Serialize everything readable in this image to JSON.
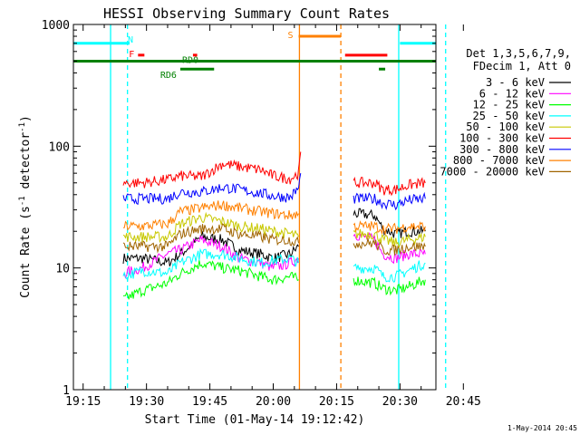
{
  "chart_data": {
    "type": "line",
    "title": "HESSI Observing Summary Count Rates",
    "xlabel": "Start Time (01-May-14 19:12:42)",
    "ylabel": "Count Rate (s",
    "ylabel_sup": "-1",
    "ylabel_mid": " detector",
    "ylabel_tail": ")",
    "xlim_min": [
      12.7,
      98.5
    ],
    "x_ticks": [
      "19:15",
      "19:30",
      "19:45",
      "20:00",
      "20:15",
      "20:30",
      "20:45"
    ],
    "x_tick_minutes": [
      15,
      30,
      45,
      60,
      75,
      90,
      105
    ],
    "ylim": [
      1,
      1000
    ],
    "yscale": "log",
    "y_ticks": [
      "1",
      "10",
      "100",
      "1000"
    ],
    "y_tick_values": [
      1,
      10,
      100,
      1000
    ],
    "legend_header": [
      "Det 1,3,5,6,7,9,",
      "FDecim 1, Att 0"
    ],
    "legend_position": "right",
    "timestamp": "1-May-2014 20:45",
    "series": [
      {
        "name": "3 - 6 keV",
        "color": "#000000",
        "segments": [
          [
            [
              24.5,
              12
            ],
            [
              29,
              12
            ],
            [
              35,
              11
            ],
            [
              38,
              13
            ],
            [
              43,
              18
            ],
            [
              48,
              17
            ],
            [
              52,
              14
            ],
            [
              57,
              13
            ],
            [
              60,
              12
            ],
            [
              64,
              13
            ],
            [
              66,
              15
            ]
          ],
          [
            [
              79,
              28
            ],
            [
              84,
              27
            ],
            [
              86,
              21
            ],
            [
              89,
              19
            ],
            [
              92,
              20
            ],
            [
              96,
              20
            ]
          ]
        ]
      },
      {
        "name": "6 - 12 keV",
        "color": "#ff00ff",
        "segments": [
          [
            [
              24.5,
              9
            ],
            [
              29,
              10
            ],
            [
              35,
              13
            ],
            [
              38,
              14
            ],
            [
              43,
              17
            ],
            [
              48,
              15
            ],
            [
              52,
              12
            ],
            [
              57,
              11
            ],
            [
              60,
              10
            ],
            [
              64,
              11
            ],
            [
              66,
              12
            ]
          ],
          [
            [
              79,
              19
            ],
            [
              84,
              17
            ],
            [
              86,
              13
            ],
            [
              89,
              12
            ],
            [
              92,
              13
            ],
            [
              96,
              13
            ]
          ]
        ]
      },
      {
        "name": "12 - 25 keV",
        "color": "#00ff00",
        "segments": [
          [
            [
              24.5,
              5.5
            ],
            [
              29,
              6.5
            ],
            [
              35,
              7.5
            ],
            [
              38,
              9
            ],
            [
              43,
              11
            ],
            [
              48,
              10
            ],
            [
              52,
              9.5
            ],
            [
              57,
              8.5
            ],
            [
              60,
              8
            ],
            [
              64,
              8.5
            ],
            [
              66,
              8
            ]
          ],
          [
            [
              79,
              8
            ],
            [
              84,
              7.5
            ],
            [
              86,
              6.8
            ],
            [
              89,
              6.5
            ],
            [
              92,
              7
            ],
            [
              96,
              8
            ]
          ]
        ]
      },
      {
        "name": "25 - 50 keV",
        "color": "#00ffff",
        "segments": [
          [
            [
              24.5,
              8.5
            ],
            [
              29,
              9.5
            ],
            [
              35,
              9
            ],
            [
              38,
              11
            ],
            [
              43,
              13
            ],
            [
              48,
              13
            ],
            [
              52,
              12
            ],
            [
              57,
              11
            ],
            [
              60,
              11.5
            ],
            [
              64,
              12
            ],
            [
              66,
              11
            ]
          ],
          [
            [
              79,
              10
            ],
            [
              84,
              10
            ],
            [
              86,
              8.5
            ],
            [
              89,
              8.5
            ],
            [
              92,
              9.5
            ],
            [
              96,
              11
            ]
          ]
        ]
      },
      {
        "name": "50 - 100 keV",
        "color": "#c8c800",
        "segments": [
          [
            [
              24.5,
              18
            ],
            [
              29,
              18
            ],
            [
              35,
              18
            ],
            [
              38,
              23
            ],
            [
              43,
              26
            ],
            [
              48,
              24
            ],
            [
              52,
              22
            ],
            [
              57,
              21
            ],
            [
              60,
              20
            ],
            [
              64,
              19
            ],
            [
              66,
              18
            ]
          ],
          [
            [
              79,
              19
            ],
            [
              84,
              19
            ],
            [
              86,
              17
            ],
            [
              89,
              16
            ],
            [
              92,
              17
            ],
            [
              96,
              18
            ]
          ]
        ]
      },
      {
        "name": "100 - 300 keV",
        "color": "#ff0000",
        "segments": [
          [
            [
              24.5,
              50
            ],
            [
              29,
              50
            ],
            [
              35,
              53
            ],
            [
              38,
              57
            ],
            [
              43,
              56
            ],
            [
              48,
              72
            ],
            [
              52,
              68
            ],
            [
              57,
              64
            ],
            [
              60,
              57
            ],
            [
              64,
              54
            ],
            [
              66,
              60
            ],
            [
              66.5,
              90
            ]
          ],
          [
            [
              79,
              50
            ],
            [
              84,
              50
            ],
            [
              86,
              44
            ],
            [
              89,
              44
            ],
            [
              92,
              48
            ],
            [
              96,
              50
            ]
          ]
        ]
      },
      {
        "name": "300 - 800 keV",
        "color": "#0000ff",
        "segments": [
          [
            [
              24.5,
              37
            ],
            [
              29,
              37
            ],
            [
              35,
              37
            ],
            [
              38,
              42
            ],
            [
              43,
              42
            ],
            [
              48,
              46
            ],
            [
              52,
              44
            ],
            [
              57,
              41
            ],
            [
              60,
              39
            ],
            [
              64,
              38
            ],
            [
              66,
              45
            ],
            [
              66.5,
              60
            ]
          ],
          [
            [
              79,
              37
            ],
            [
              84,
              37
            ],
            [
              86,
              34
            ],
            [
              89,
              33
            ],
            [
              92,
              36
            ],
            [
              96,
              37
            ]
          ]
        ]
      },
      {
        "name": "800 - 7000 keV",
        "color": "#ff8000",
        "segments": [
          [
            [
              24.5,
              22
            ],
            [
              29,
              22
            ],
            [
              35,
              23
            ],
            [
              38,
              29
            ],
            [
              43,
              31
            ],
            [
              48,
              33
            ],
            [
              52,
              31
            ],
            [
              57,
              29
            ],
            [
              60,
              28
            ],
            [
              64,
              27
            ],
            [
              66,
              28
            ]
          ],
          [
            [
              79,
              22
            ],
            [
              84,
              22
            ],
            [
              86,
              21
            ],
            [
              89,
              21
            ],
            [
              92,
              22
            ],
            [
              96,
              22
            ]
          ]
        ]
      },
      {
        "name": "7000 - 20000 keV",
        "color": "#a06400",
        "segments": [
          [
            [
              24.5,
              15
            ],
            [
              29,
              15
            ],
            [
              35,
              15
            ],
            [
              38,
              19
            ],
            [
              43,
              21
            ],
            [
              48,
              21
            ],
            [
              52,
              19
            ],
            [
              57,
              18
            ],
            [
              60,
              17
            ],
            [
              64,
              17
            ],
            [
              66,
              16
            ]
          ],
          [
            [
              79,
              16
            ],
            [
              84,
              16
            ],
            [
              86,
              14
            ],
            [
              89,
              14
            ],
            [
              92,
              15
            ],
            [
              96,
              15
            ]
          ]
        ]
      }
    ],
    "flag_bars": [
      {
        "label": "N",
        "color": "#00ffff",
        "y": 700,
        "spans": [
          [
            12.7,
            26
          ],
          [
            90,
            98.5
          ]
        ]
      },
      {
        "label": "F",
        "color": "#ff0000",
        "y": 560,
        "spans": [
          [
            28,
            29.5
          ],
          [
            41,
            42
          ],
          [
            77,
            87
          ]
        ]
      },
      {
        "label": "RD0",
        "color": "#008000",
        "y": 500,
        "spans": [
          [
            12.7,
            98.5
          ]
        ]
      },
      {
        "label": "RD6",
        "color": "#008000",
        "y": 430,
        "spans": [
          [
            38,
            46
          ],
          [
            85,
            86.5
          ]
        ]
      },
      {
        "label": "S",
        "color": "#ff8000",
        "y": 800,
        "spans": [
          [
            66,
            76
          ]
        ]
      }
    ],
    "vlines": [
      {
        "x": 21.5,
        "color": "#00ffff",
        "style": "solid"
      },
      {
        "x": 25.5,
        "color": "#00ffff",
        "style": "dashed"
      },
      {
        "x": 66.2,
        "color": "#ff8000",
        "style": "solid"
      },
      {
        "x": 76.0,
        "color": "#ff8000",
        "style": "dashed"
      },
      {
        "x": 89.7,
        "color": "#00ffff",
        "style": "solid"
      },
      {
        "x": 100.8,
        "color": "#00ffff",
        "style": "dashed"
      }
    ]
  }
}
